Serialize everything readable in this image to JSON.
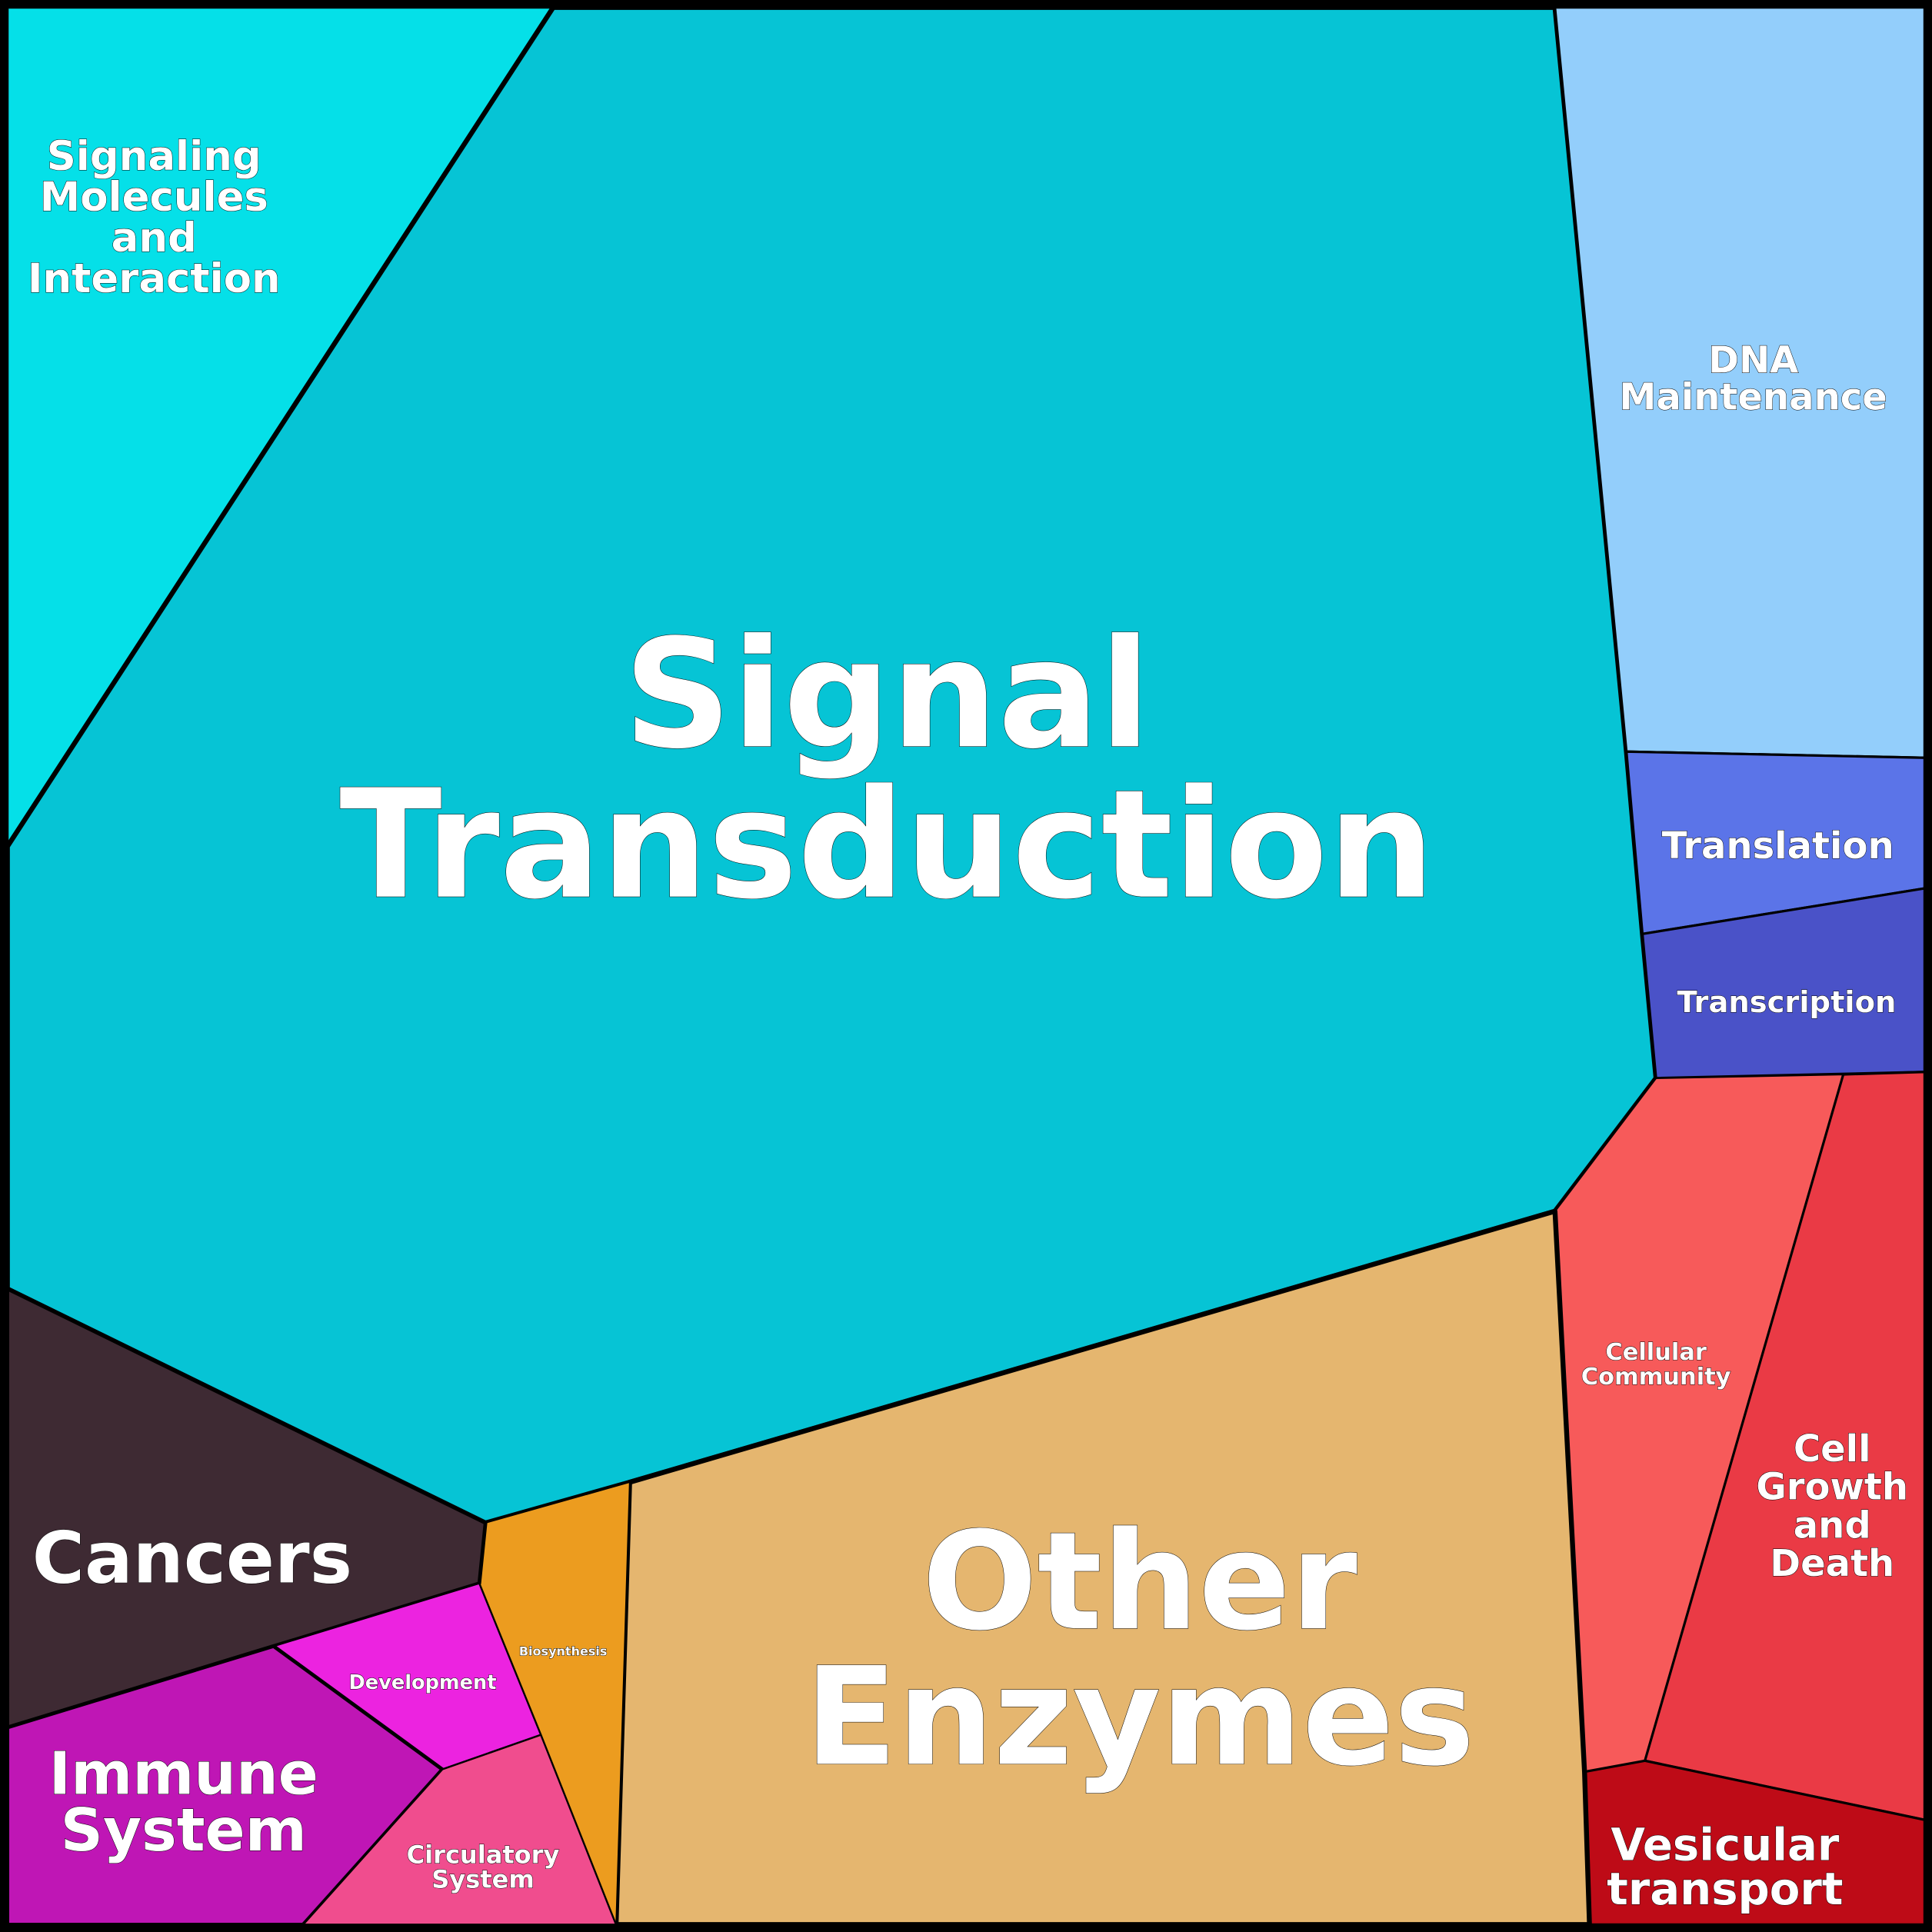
{
  "chart_data": {
    "type": "voronoi-treemap",
    "regions": [
      {
        "id": "signaling-molecules",
        "label": [
          "Signaling",
          "Molecules",
          "and",
          "Interaction"
        ],
        "color": "#05e0e8"
      },
      {
        "id": "signal-transduction",
        "label": [
          "Signal",
          "Transduction"
        ],
        "color": "#06c4d5"
      },
      {
        "id": "dna-maintenance",
        "label": [
          "DNA",
          "Maintenance"
        ],
        "color": "#93cefb"
      },
      {
        "id": "translation",
        "label": [
          "Translation"
        ],
        "color": "#5b74e8"
      },
      {
        "id": "transcription",
        "label": [
          "Transcription"
        ],
        "color": "#4a52c8"
      },
      {
        "id": "cellular-community",
        "label": [
          "Cellular",
          "Community"
        ],
        "color": "#f75a5a"
      },
      {
        "id": "cell-growth-and-death",
        "label": [
          "Cell",
          "Growth",
          "and",
          "Death"
        ],
        "color": "#ea3a45"
      },
      {
        "id": "vesicular-transport",
        "label": [
          "Vesicular",
          "transport"
        ],
        "color": "#be0b17"
      },
      {
        "id": "other-enzymes",
        "label": [
          "Other",
          "Enzymes"
        ],
        "color": "#e5b66f"
      },
      {
        "id": "biosynthesis",
        "label": [
          "Biosynthesis"
        ],
        "color": "#ec9c1f"
      },
      {
        "id": "cancers",
        "label": [
          "Cancers"
        ],
        "color": "#3e2a33"
      },
      {
        "id": "development",
        "label": [
          "Development"
        ],
        "color": "#ec23e0"
      },
      {
        "id": "immune-system",
        "label": [
          "Immune",
          "System"
        ],
        "color": "#bf16b5"
      },
      {
        "id": "circulatory-system",
        "label": [
          "Circulatory",
          "System"
        ],
        "color": "#f04d8e"
      }
    ]
  }
}
